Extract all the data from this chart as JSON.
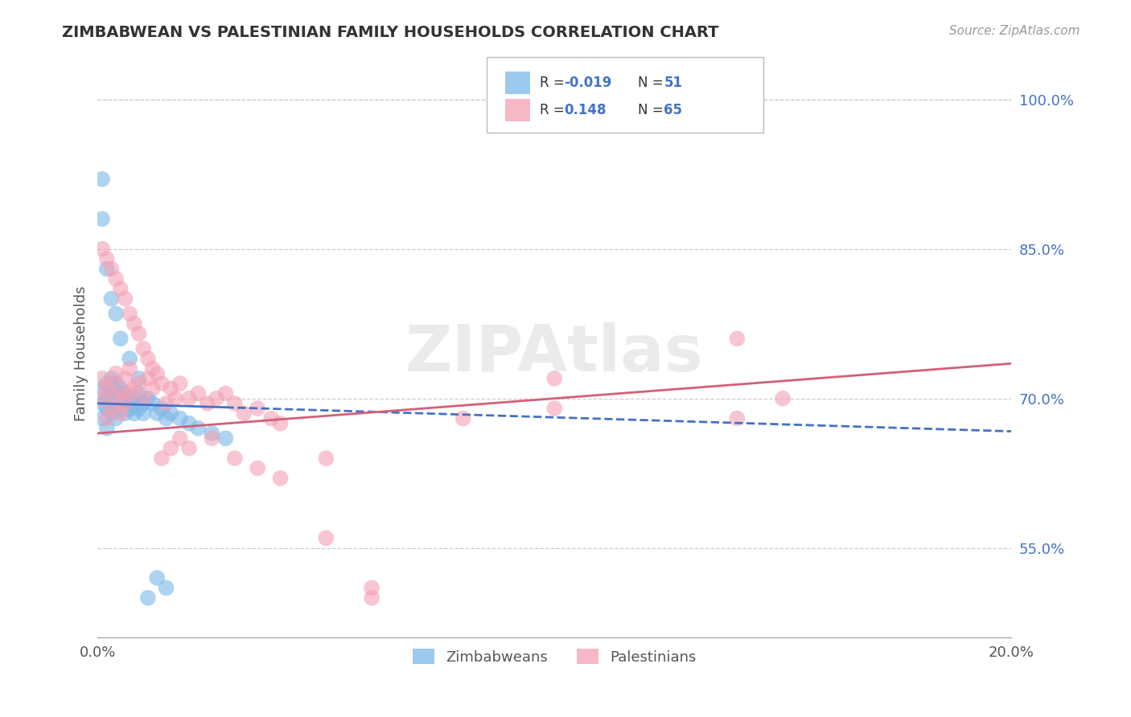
{
  "title": "ZIMBABWEAN VS PALESTINIAN FAMILY HOUSEHOLDS CORRELATION CHART",
  "source": "Source: ZipAtlas.com",
  "ylabel": "Family Households",
  "xlim": [
    0.0,
    0.2
  ],
  "ylim": [
    0.46,
    1.03
  ],
  "yticks": [
    0.55,
    0.7,
    0.85,
    1.0
  ],
  "ytick_labels": [
    "55.0%",
    "70.0%",
    "85.0%",
    "100.0%"
  ],
  "legend_r_zimbabwean": "-0.019",
  "legend_n_zimbabwean": "51",
  "legend_r_palestinian": "0.148",
  "legend_n_palestinian": "65",
  "zimbabwean_color": "#7bb8e8",
  "palestinian_color": "#f4a0b5",
  "trendline_zimbabwean_color": "#4472c4",
  "trendline_palestinian_color": "#d45f7a",
  "zimbabwean_x": [
    0.001,
    0.001,
    0.001,
    0.002,
    0.002,
    0.002,
    0.002,
    0.003,
    0.003,
    0.003,
    0.003,
    0.004,
    0.004,
    0.004,
    0.004,
    0.005,
    0.005,
    0.005,
    0.006,
    0.006,
    0.006,
    0.007,
    0.007,
    0.008,
    0.008,
    0.009,
    0.009,
    0.01,
    0.01,
    0.011,
    0.012,
    0.013,
    0.014,
    0.015,
    0.016,
    0.018,
    0.02,
    0.022,
    0.025,
    0.028,
    0.001,
    0.001,
    0.002,
    0.003,
    0.004,
    0.005,
    0.007,
    0.009,
    0.011,
    0.013,
    0.015
  ],
  "zimbabwean_y": [
    0.695,
    0.68,
    0.71,
    0.67,
    0.69,
    0.7,
    0.715,
    0.685,
    0.7,
    0.71,
    0.72,
    0.68,
    0.695,
    0.705,
    0.715,
    0.69,
    0.7,
    0.71,
    0.685,
    0.695,
    0.705,
    0.69,
    0.7,
    0.685,
    0.7,
    0.69,
    0.705,
    0.685,
    0.695,
    0.7,
    0.695,
    0.685,
    0.69,
    0.68,
    0.685,
    0.68,
    0.675,
    0.67,
    0.665,
    0.66,
    0.92,
    0.88,
    0.83,
    0.8,
    0.785,
    0.76,
    0.74,
    0.72,
    0.5,
    0.52,
    0.51
  ],
  "palestinian_x": [
    0.001,
    0.001,
    0.002,
    0.002,
    0.003,
    0.003,
    0.004,
    0.004,
    0.005,
    0.005,
    0.006,
    0.006,
    0.007,
    0.007,
    0.008,
    0.009,
    0.01,
    0.011,
    0.012,
    0.013,
    0.014,
    0.015,
    0.016,
    0.017,
    0.018,
    0.02,
    0.022,
    0.024,
    0.026,
    0.028,
    0.03,
    0.032,
    0.035,
    0.038,
    0.04,
    0.001,
    0.002,
    0.003,
    0.004,
    0.005,
    0.006,
    0.007,
    0.008,
    0.009,
    0.01,
    0.011,
    0.012,
    0.014,
    0.016,
    0.018,
    0.02,
    0.025,
    0.03,
    0.035,
    0.04,
    0.05,
    0.06,
    0.1,
    0.14,
    0.15,
    0.1,
    0.14,
    0.05,
    0.06,
    0.08
  ],
  "palestinian_y": [
    0.7,
    0.72,
    0.68,
    0.71,
    0.69,
    0.715,
    0.7,
    0.725,
    0.685,
    0.705,
    0.695,
    0.72,
    0.705,
    0.73,
    0.71,
    0.715,
    0.7,
    0.72,
    0.71,
    0.725,
    0.715,
    0.695,
    0.71,
    0.7,
    0.715,
    0.7,
    0.705,
    0.695,
    0.7,
    0.705,
    0.695,
    0.685,
    0.69,
    0.68,
    0.675,
    0.85,
    0.84,
    0.83,
    0.82,
    0.81,
    0.8,
    0.785,
    0.775,
    0.765,
    0.75,
    0.74,
    0.73,
    0.64,
    0.65,
    0.66,
    0.65,
    0.66,
    0.64,
    0.63,
    0.62,
    0.56,
    0.51,
    0.69,
    0.76,
    0.7,
    0.72,
    0.68,
    0.64,
    0.5,
    0.68
  ]
}
